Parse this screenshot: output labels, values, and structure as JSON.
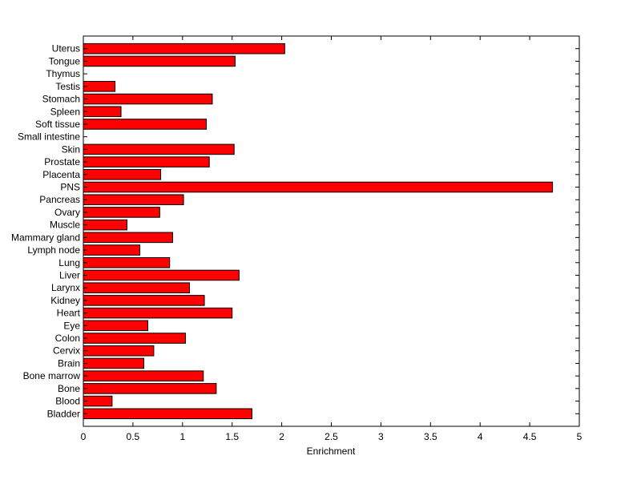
{
  "chart_data": {
    "type": "bar",
    "orientation": "horizontal",
    "title": "",
    "xlabel": "Enrichment",
    "ylabel": "",
    "xlim": [
      0,
      5
    ],
    "xticks": [
      "0",
      "0.5",
      "1",
      "1.5",
      "2",
      "2.5",
      "3",
      "3.5",
      "4",
      "4.5",
      "5"
    ],
    "grid": false,
    "bar_color": "#ff0000",
    "edge_color": "#000000",
    "categories": [
      "Bladder",
      "Blood",
      "Bone",
      "Bone marrow",
      "Brain",
      "Cervix",
      "Colon",
      "Eye",
      "Heart",
      "Kidney",
      "Larynx",
      "Liver",
      "Lung",
      "Lymph node",
      "Mammary gland",
      "Muscle",
      "Ovary",
      "Pancreas",
      "PNS",
      "Placenta",
      "Prostate",
      "Skin",
      "Small intestine",
      "Soft tissue",
      "Spleen",
      "Stomach",
      "Testis",
      "Thymus",
      "Tongue",
      "Uterus"
    ],
    "values": [
      1.7,
      0.29,
      1.34,
      1.21,
      0.61,
      0.71,
      1.03,
      0.65,
      1.5,
      1.22,
      1.07,
      1.57,
      0.87,
      0.57,
      0.9,
      0.44,
      0.77,
      1.01,
      4.73,
      0.78,
      1.27,
      1.52,
      0,
      1.24,
      0.38,
      1.3,
      0.32,
      0,
      1.53,
      2.03
    ]
  }
}
